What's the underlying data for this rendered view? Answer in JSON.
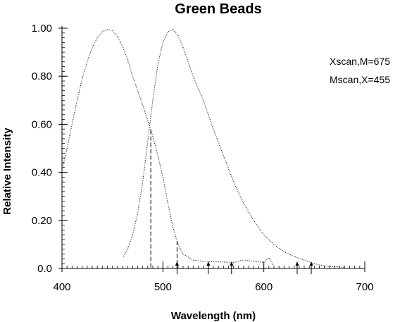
{
  "chart_data": {
    "type": "line",
    "title": "Green Beads",
    "xlabel": "Wavelength (nm)",
    "ylabel": "Relative Intensity",
    "xlim": [
      400,
      700
    ],
    "ylim": [
      0,
      1.0
    ],
    "xticks": [
      400,
      500,
      600,
      700
    ],
    "xtick_labels": [
      "400",
      "500",
      "600",
      "700"
    ],
    "yticks": [
      0,
      0.2,
      0.4,
      0.6,
      0.8,
      1.0
    ],
    "ytick_labels": [
      "0.0",
      "0.20",
      "0.40",
      "0.60",
      "0.80",
      "1.00"
    ],
    "grid": false,
    "legend_position": "top-right",
    "series": [
      {
        "name": "Xscan,M=675",
        "style": "dotted",
        "x": [
          400,
          405,
          410,
          415,
          420,
          425,
          430,
          435,
          440,
          445,
          450,
          455,
          460,
          465,
          470,
          475,
          480,
          485,
          490,
          495,
          500,
          505,
          510,
          515,
          520,
          530,
          540,
          550,
          560,
          570,
          580,
          590,
          600,
          605,
          607,
          610
        ],
        "y": [
          0.41,
          0.5,
          0.6,
          0.7,
          0.79,
          0.86,
          0.92,
          0.96,
          0.985,
          0.995,
          0.99,
          0.965,
          0.925,
          0.87,
          0.8,
          0.74,
          0.68,
          0.615,
          0.55,
          0.47,
          0.38,
          0.27,
          0.17,
          0.1,
          0.06,
          0.035,
          0.03,
          0.028,
          0.027,
          0.025,
          0.035,
          0.03,
          0.025,
          0.045,
          0.03,
          0.01
        ]
      },
      {
        "name": "Mscan,X=455",
        "style": "dotted",
        "x": [
          461,
          465,
          470,
          475,
          480,
          485,
          490,
          495,
          500,
          505,
          510,
          515,
          520,
          525,
          530,
          540,
          550,
          560,
          570,
          580,
          590,
          600,
          610,
          620,
          630,
          640,
          650,
          660,
          680
        ],
        "y": [
          0.05,
          0.08,
          0.14,
          0.23,
          0.36,
          0.53,
          0.7,
          0.85,
          0.94,
          0.985,
          0.995,
          0.97,
          0.92,
          0.86,
          0.8,
          0.7,
          0.58,
          0.47,
          0.36,
          0.27,
          0.2,
          0.14,
          0.1,
          0.07,
          0.05,
          0.035,
          0.02,
          0.01,
          0.005
        ]
      }
    ],
    "markers": {
      "dashed_lines": [
        488,
        514
      ],
      "arrows": [
        514,
        545,
        568,
        633,
        647
      ]
    }
  }
}
